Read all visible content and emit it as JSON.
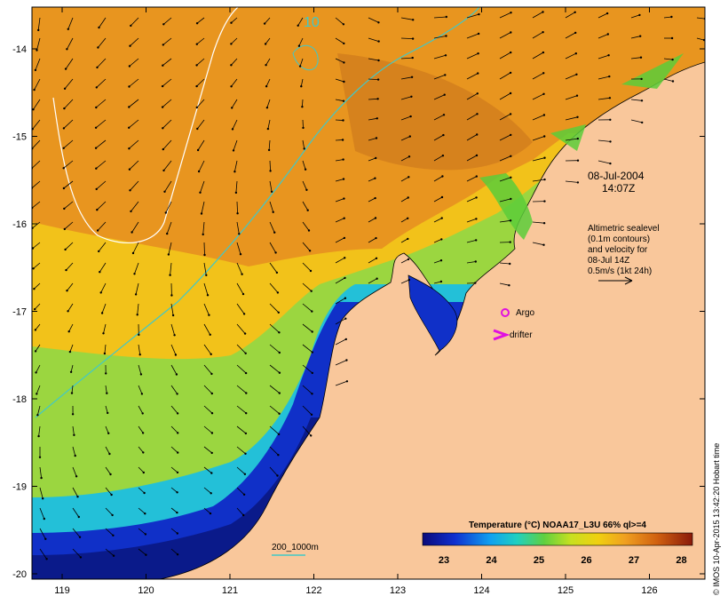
{
  "map": {
    "y_ticks": [
      "-14",
      "-15",
      "-16",
      "-17",
      "-18",
      "-19",
      "-20"
    ],
    "x_ticks": [
      "119",
      "120",
      "121",
      "122",
      "123",
      "124",
      "125",
      "126"
    ],
    "date_line1": "08-Jul-2004",
    "date_line2": "14:07Z",
    "alt_lines": [
      "Altimetric sealevel",
      "(0.1m contours)",
      "and velocity for",
      "08-Jul 14Z",
      "0.5m/s (1kt 24h)"
    ],
    "contour_label": "10",
    "argo_label": "Argo",
    "drifter_label": "drifter",
    "isobath_label": "200_1000m",
    "colorbar": {
      "title": "Temperature (°C) NOAA17_L3U 66% ql>=4",
      "ticks": [
        "23",
        "24",
        "25",
        "26",
        "27",
        "28"
      ]
    },
    "credit": "© IMOS 10-Apr-2015 13:42:20 Hobart time",
    "colors": {
      "land": "#f9c79b",
      "warm_sea": "#e8951f",
      "mid_sea": "#f2c21a",
      "cool_sea": "#8fd33a",
      "cold_sea": "#1a3fd0",
      "deep_blue": "#0a1a8a",
      "isobath": "#40c8c8",
      "marker": "#e010e0"
    }
  }
}
